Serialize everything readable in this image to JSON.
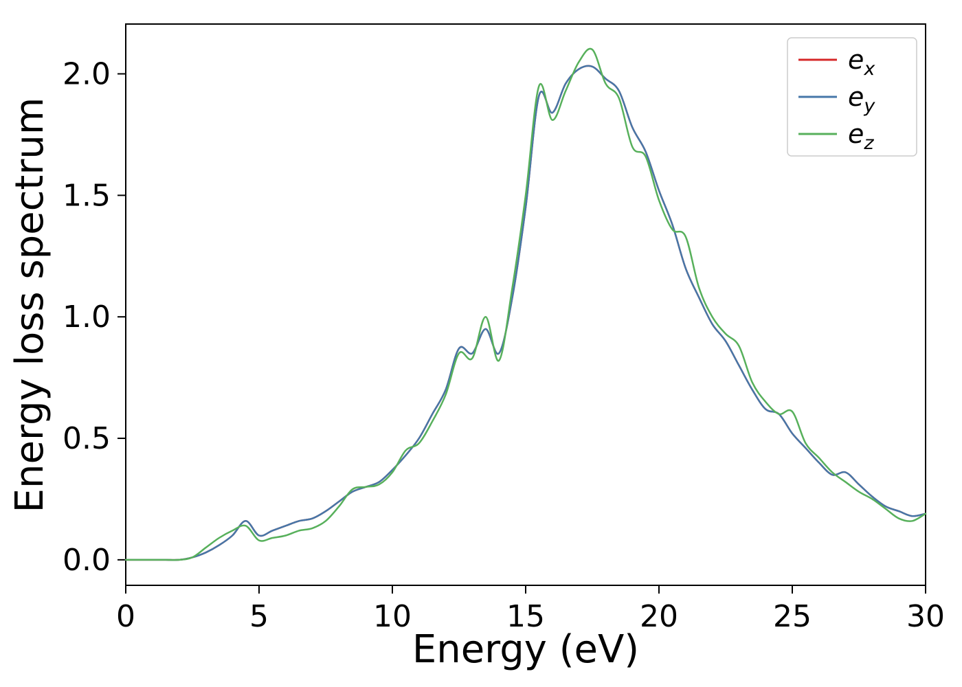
{
  "figure": {
    "background": "#ffffff"
  },
  "chart_data": {
    "type": "line",
    "title": "",
    "xlabel": "Energy (eV)",
    "ylabel": "Energy loss spectrum",
    "xlim": [
      0,
      30
    ],
    "ylim": [
      -0.105,
      2.205
    ],
    "xticks": [
      0,
      5,
      10,
      15,
      20,
      25,
      30
    ],
    "yticks": [
      0.0,
      0.5,
      1.0,
      1.5,
      2.0
    ],
    "grid": false,
    "legend_position": "upper right",
    "axis_color": "#000000",
    "x": [
      0,
      0.5,
      1,
      1.5,
      2,
      2.5,
      3,
      3.5,
      4,
      4.5,
      5,
      5.5,
      6,
      6.5,
      7,
      7.5,
      8,
      8.5,
      9,
      9.5,
      10,
      10.5,
      11,
      11.5,
      12,
      12.5,
      13,
      13.5,
      14,
      14.5,
      15,
      15.5,
      16,
      16.5,
      17,
      17.5,
      18,
      18.5,
      19,
      19.5,
      20,
      20.5,
      21,
      21.5,
      22,
      22.5,
      23,
      23.5,
      24,
      24.5,
      25,
      25.5,
      26,
      26.5,
      27,
      27.5,
      28,
      28.5,
      29,
      29.5,
      30
    ],
    "series": [
      {
        "name": "e_x",
        "color": "#d62728",
        "values": [
          0.0,
          0.0,
          0.0,
          0.0,
          0.0,
          0.01,
          0.03,
          0.06,
          0.1,
          0.16,
          0.1,
          0.12,
          0.14,
          0.16,
          0.17,
          0.2,
          0.24,
          0.28,
          0.3,
          0.32,
          0.37,
          0.43,
          0.5,
          0.6,
          0.7,
          0.87,
          0.85,
          0.95,
          0.85,
          1.08,
          1.45,
          1.91,
          1.84,
          1.96,
          2.02,
          2.03,
          1.98,
          1.93,
          1.78,
          1.68,
          1.52,
          1.38,
          1.2,
          1.08,
          0.97,
          0.9,
          0.8,
          0.7,
          0.62,
          0.6,
          0.52,
          0.46,
          0.4,
          0.35,
          0.36,
          0.31,
          0.26,
          0.22,
          0.2,
          0.18,
          0.19
        ]
      },
      {
        "name": "e_y",
        "color": "#4677a8",
        "values": [
          0.0,
          0.0,
          0.0,
          0.0,
          0.0,
          0.01,
          0.03,
          0.06,
          0.1,
          0.16,
          0.1,
          0.12,
          0.14,
          0.16,
          0.17,
          0.2,
          0.24,
          0.28,
          0.3,
          0.32,
          0.37,
          0.43,
          0.5,
          0.6,
          0.7,
          0.87,
          0.85,
          0.95,
          0.85,
          1.08,
          1.45,
          1.91,
          1.84,
          1.96,
          2.02,
          2.03,
          1.98,
          1.93,
          1.78,
          1.68,
          1.52,
          1.38,
          1.2,
          1.08,
          0.97,
          0.9,
          0.8,
          0.7,
          0.62,
          0.6,
          0.52,
          0.46,
          0.4,
          0.35,
          0.36,
          0.31,
          0.26,
          0.22,
          0.2,
          0.18,
          0.19
        ]
      },
      {
        "name": "e_z",
        "color": "#57b05b",
        "values": [
          0.0,
          0.0,
          0.0,
          0.0,
          0.0,
          0.01,
          0.05,
          0.09,
          0.12,
          0.14,
          0.08,
          0.09,
          0.1,
          0.12,
          0.13,
          0.16,
          0.22,
          0.29,
          0.3,
          0.31,
          0.36,
          0.45,
          0.48,
          0.57,
          0.68,
          0.85,
          0.83,
          1.0,
          0.82,
          1.12,
          1.5,
          1.95,
          1.81,
          1.93,
          2.05,
          2.1,
          1.96,
          1.9,
          1.7,
          1.66,
          1.48,
          1.36,
          1.33,
          1.12,
          1.0,
          0.93,
          0.88,
          0.73,
          0.65,
          0.6,
          0.61,
          0.48,
          0.42,
          0.36,
          0.32,
          0.28,
          0.25,
          0.21,
          0.17,
          0.16,
          0.19
        ]
      }
    ],
    "legend": {
      "entries": [
        "e_x",
        "e_y",
        "e_z"
      ],
      "border_color": "#cccccc",
      "background": "#ffffff"
    }
  }
}
